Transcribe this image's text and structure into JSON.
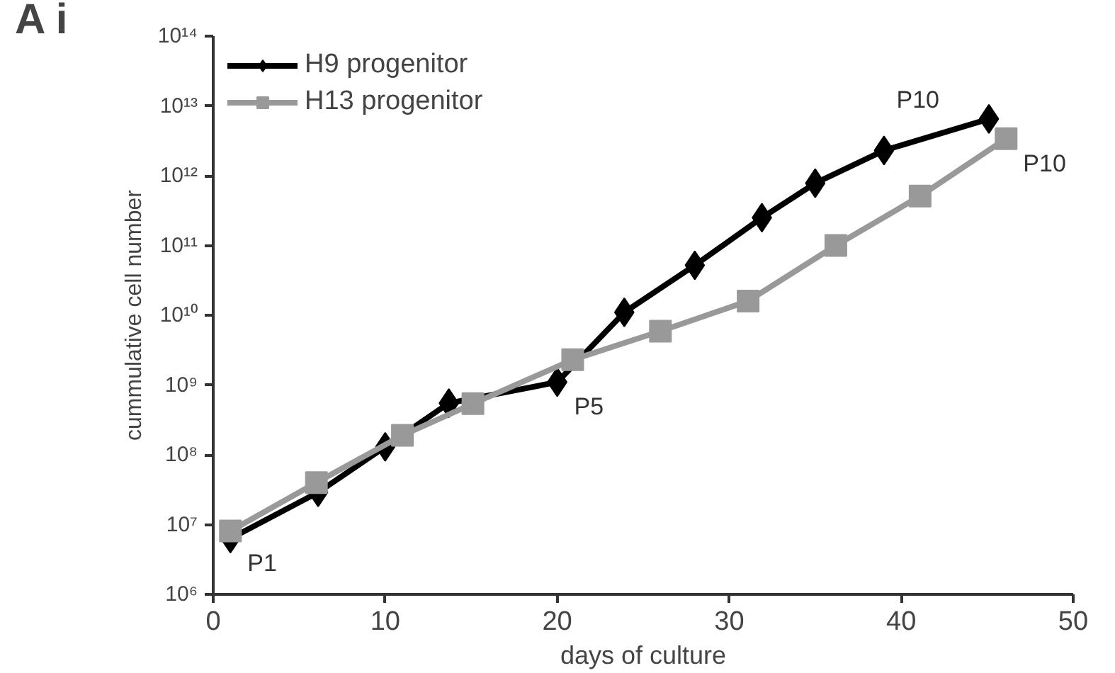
{
  "chart_data": {
    "type": "line",
    "xlabel": "days of culture",
    "ylabel": "cummulative cell number",
    "log": "y",
    "legend": "top left",
    "grid": false,
    "line_style": "solid",
    "xlim": [
      0,
      50
    ],
    "xticks": [
      0,
      10,
      20,
      30,
      40,
      50
    ],
    "ylim": [
      1000000.0,
      100000000000000.0
    ],
    "yticks": [
      {
        "value": 1000000.0,
        "label": "10⁶"
      },
      {
        "value": 10000000.0,
        "label": "10⁷"
      },
      {
        "value": 100000000.0,
        "label": "10⁸"
      },
      {
        "value": 1000000000.0,
        "label": "10⁹"
      },
      {
        "value": 10000000000.0,
        "label": "10¹⁰"
      },
      {
        "value": 100000000000.0,
        "label": "10¹¹"
      },
      {
        "value": 1000000000000.0,
        "label": "10¹²"
      },
      {
        "value": 10000000000000.0,
        "label": "10¹³"
      },
      {
        "value": 100000000000000.0,
        "label": "10¹⁴"
      }
    ],
    "series": [
      {
        "name": "H9 progenitor",
        "color": "#000000",
        "marker": "diamond",
        "x": [
          1,
          6.1,
          10,
          13.7,
          20,
          23.9,
          28,
          31.9,
          35,
          39,
          45.1
        ],
        "values": [
          6300000.0,
          29000000.0,
          130000000.0,
          550000000.0,
          1100000000.0,
          11000000000.0,
          52000000000.0,
          250000000000.0,
          780000000000.0,
          2300000000000.0,
          6500000000000.0
        ]
      },
      {
        "name": "H13 progenitor",
        "color": "#999999",
        "marker": "square",
        "x": [
          1,
          6,
          11,
          15.1,
          20.9,
          26,
          31.1,
          36.2,
          41.1,
          46.1
        ],
        "values": [
          8100000.0,
          40000000.0,
          190000000.0,
          540000000.0,
          2300000000.0,
          5900000000.0,
          16000000000.0,
          100000000000.0,
          510000000000.0,
          3400000000000.0
        ]
      }
    ],
    "annotations": [
      "A i",
      {
        "text": "P1",
        "x": 1,
        "y": 6300000.0
      },
      {
        "text": "P5",
        "x": 20,
        "y": 1100000000.0
      },
      {
        "text": "P10",
        "x": 45.1,
        "y": 6500000000000.0
      },
      {
        "text": "P10",
        "x": 46.1,
        "y": 3400000000000.0
      }
    ]
  }
}
